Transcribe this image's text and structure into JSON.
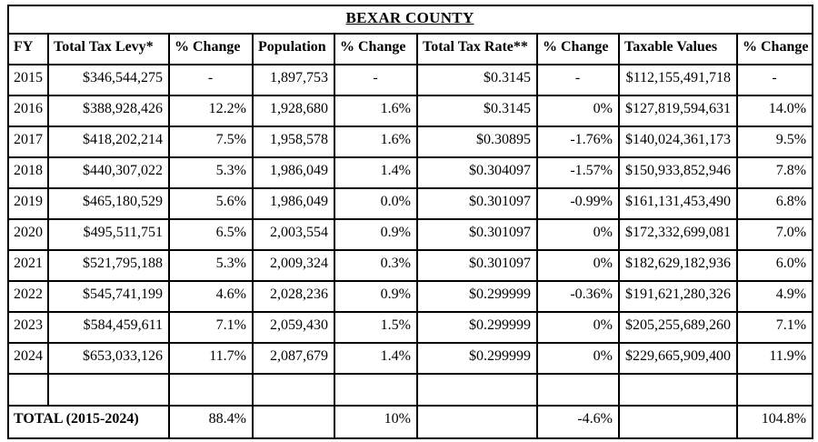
{
  "title": "BEXAR COUNTY",
  "colors": {
    "background": "#ffffff",
    "border": "#000000",
    "text": "#000000"
  },
  "table": {
    "columns": [
      "FY",
      "Total Tax Levy*",
      "% Change",
      "Population",
      "% Change",
      "Total Tax Rate**",
      "% Change",
      "Taxable Values",
      "% Change"
    ],
    "rows": [
      [
        "2015",
        "$346,544,275",
        "-",
        "1,897,753",
        "-",
        "$0.3145",
        "-",
        "$112,155,491,718",
        "-"
      ],
      [
        "2016",
        "$388,928,426",
        "12.2%",
        "1,928,680",
        "1.6%",
        "$0.3145",
        "0%",
        "$127,819,594,631",
        "14.0%"
      ],
      [
        "2017",
        "$418,202,214",
        "7.5%",
        "1,958,578",
        "1.6%",
        "$0.30895",
        "-1.76%",
        "$140,024,361,173",
        "9.5%"
      ],
      [
        "2018",
        "$440,307,022",
        "5.3%",
        "1,986,049",
        "1.4%",
        "$0.304097",
        "-1.57%",
        "$150,933,852,946",
        "7.8%"
      ],
      [
        "2019",
        "$465,180,529",
        "5.6%",
        "1,986,049",
        "0.0%",
        "$0.301097",
        "-0.99%",
        "$161,131,453,490",
        "6.8%"
      ],
      [
        "2020",
        "$495,511,751",
        "6.5%",
        "2,003,554",
        "0.9%",
        "$0.301097",
        "0%",
        "$172,332,699,081",
        "7.0%"
      ],
      [
        "2021",
        "$521,795,188",
        "5.3%",
        "2,009,324",
        "0.3%",
        "$0.301097",
        "0%",
        "$182,629,182,936",
        "6.0%"
      ],
      [
        "2022",
        "$545,741,199",
        "4.6%",
        "2,028,236",
        "0.9%",
        "$0.299999",
        "-0.36%",
        "$191,621,280,326",
        "4.9%"
      ],
      [
        "2023",
        "$584,459,611",
        "7.1%",
        "2,059,430",
        "1.5%",
        "$0.299999",
        "0%",
        "$205,255,689,260",
        "7.1%"
      ],
      [
        "2024",
        "$653,033,126",
        "11.7%",
        "2,087,679",
        "1.4%",
        "$0.299999",
        "0%",
        "$229,665,909,400",
        "11.9%"
      ]
    ],
    "total_row": {
      "label": "TOTAL (2015-2024)",
      "values": [
        "88.4%",
        "",
        "10%",
        "",
        "-4.6%",
        "",
        "104.8%"
      ]
    }
  }
}
